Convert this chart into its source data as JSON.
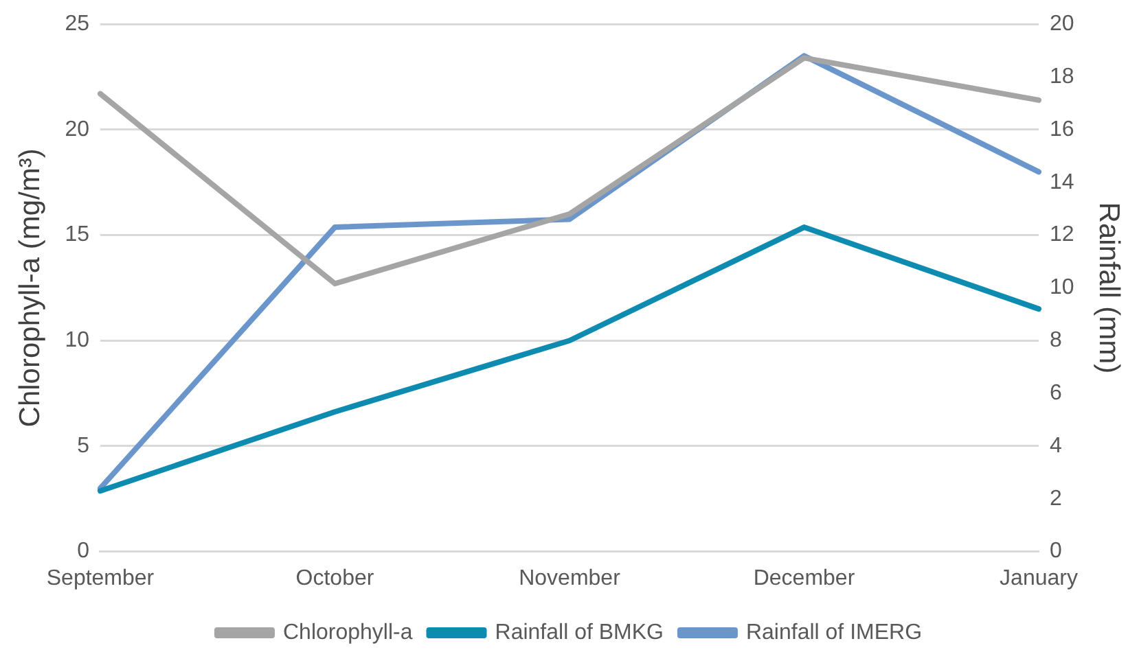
{
  "chart_data": {
    "type": "line",
    "categories": [
      "September",
      "October",
      "November",
      "December",
      "January"
    ],
    "ylabel": "Chlorophyll-a (mg/m³)",
    "y2label": "Rainfall (mm)",
    "ylim": [
      0,
      25
    ],
    "yticks": [
      0,
      5,
      10,
      15,
      20,
      25
    ],
    "y2lim": [
      0,
      20
    ],
    "y2ticks": [
      0,
      2,
      4,
      6,
      8,
      10,
      12,
      14,
      16,
      18,
      20
    ],
    "grid": "y",
    "legend": "bottom",
    "marker": "none",
    "line_style": "solid",
    "series": [
      {
        "name": "Chlorophyll-a",
        "color": "#a5a5a5",
        "values": [
          21.7,
          12.7,
          16.0,
          23.4,
          21.4
        ]
      },
      {
        "name": "Rainfall of BMKG",
        "color": "#0e8bb0",
        "axis": "y2",
        "values": [
          2.3,
          5.3,
          8.0,
          12.3,
          9.2
        ]
      },
      {
        "name": "Rainfall of IMERG",
        "color": "#6a96cc",
        "axis": "y2",
        "values": [
          2.4,
          12.3,
          12.6,
          18.8,
          14.4
        ]
      }
    ]
  }
}
